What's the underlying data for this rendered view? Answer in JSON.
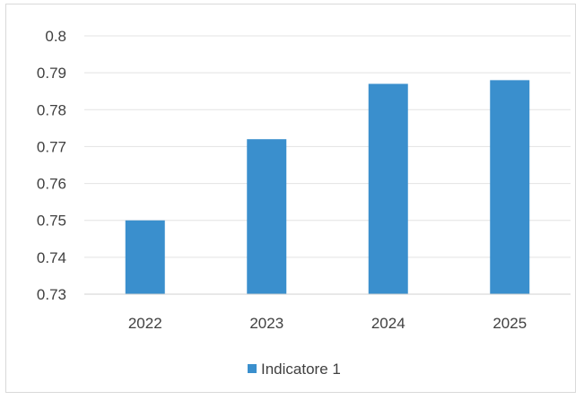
{
  "chart_data": {
    "type": "bar",
    "title": "",
    "xlabel": "",
    "ylabel": "",
    "categories": [
      "2022",
      "2023",
      "2024",
      "2025"
    ],
    "series": [
      {
        "name": "Indicatore 1",
        "values": [
          0.75,
          0.772,
          0.787,
          0.788
        ],
        "color": "#3a8fcd"
      }
    ],
    "ylim": [
      0.73,
      0.8
    ],
    "yticks": [
      "0.73",
      "0.74",
      "0.75",
      "0.76",
      "0.77",
      "0.78",
      "0.79",
      "0.8"
    ],
    "grid": true,
    "legend_position": "bottom"
  }
}
